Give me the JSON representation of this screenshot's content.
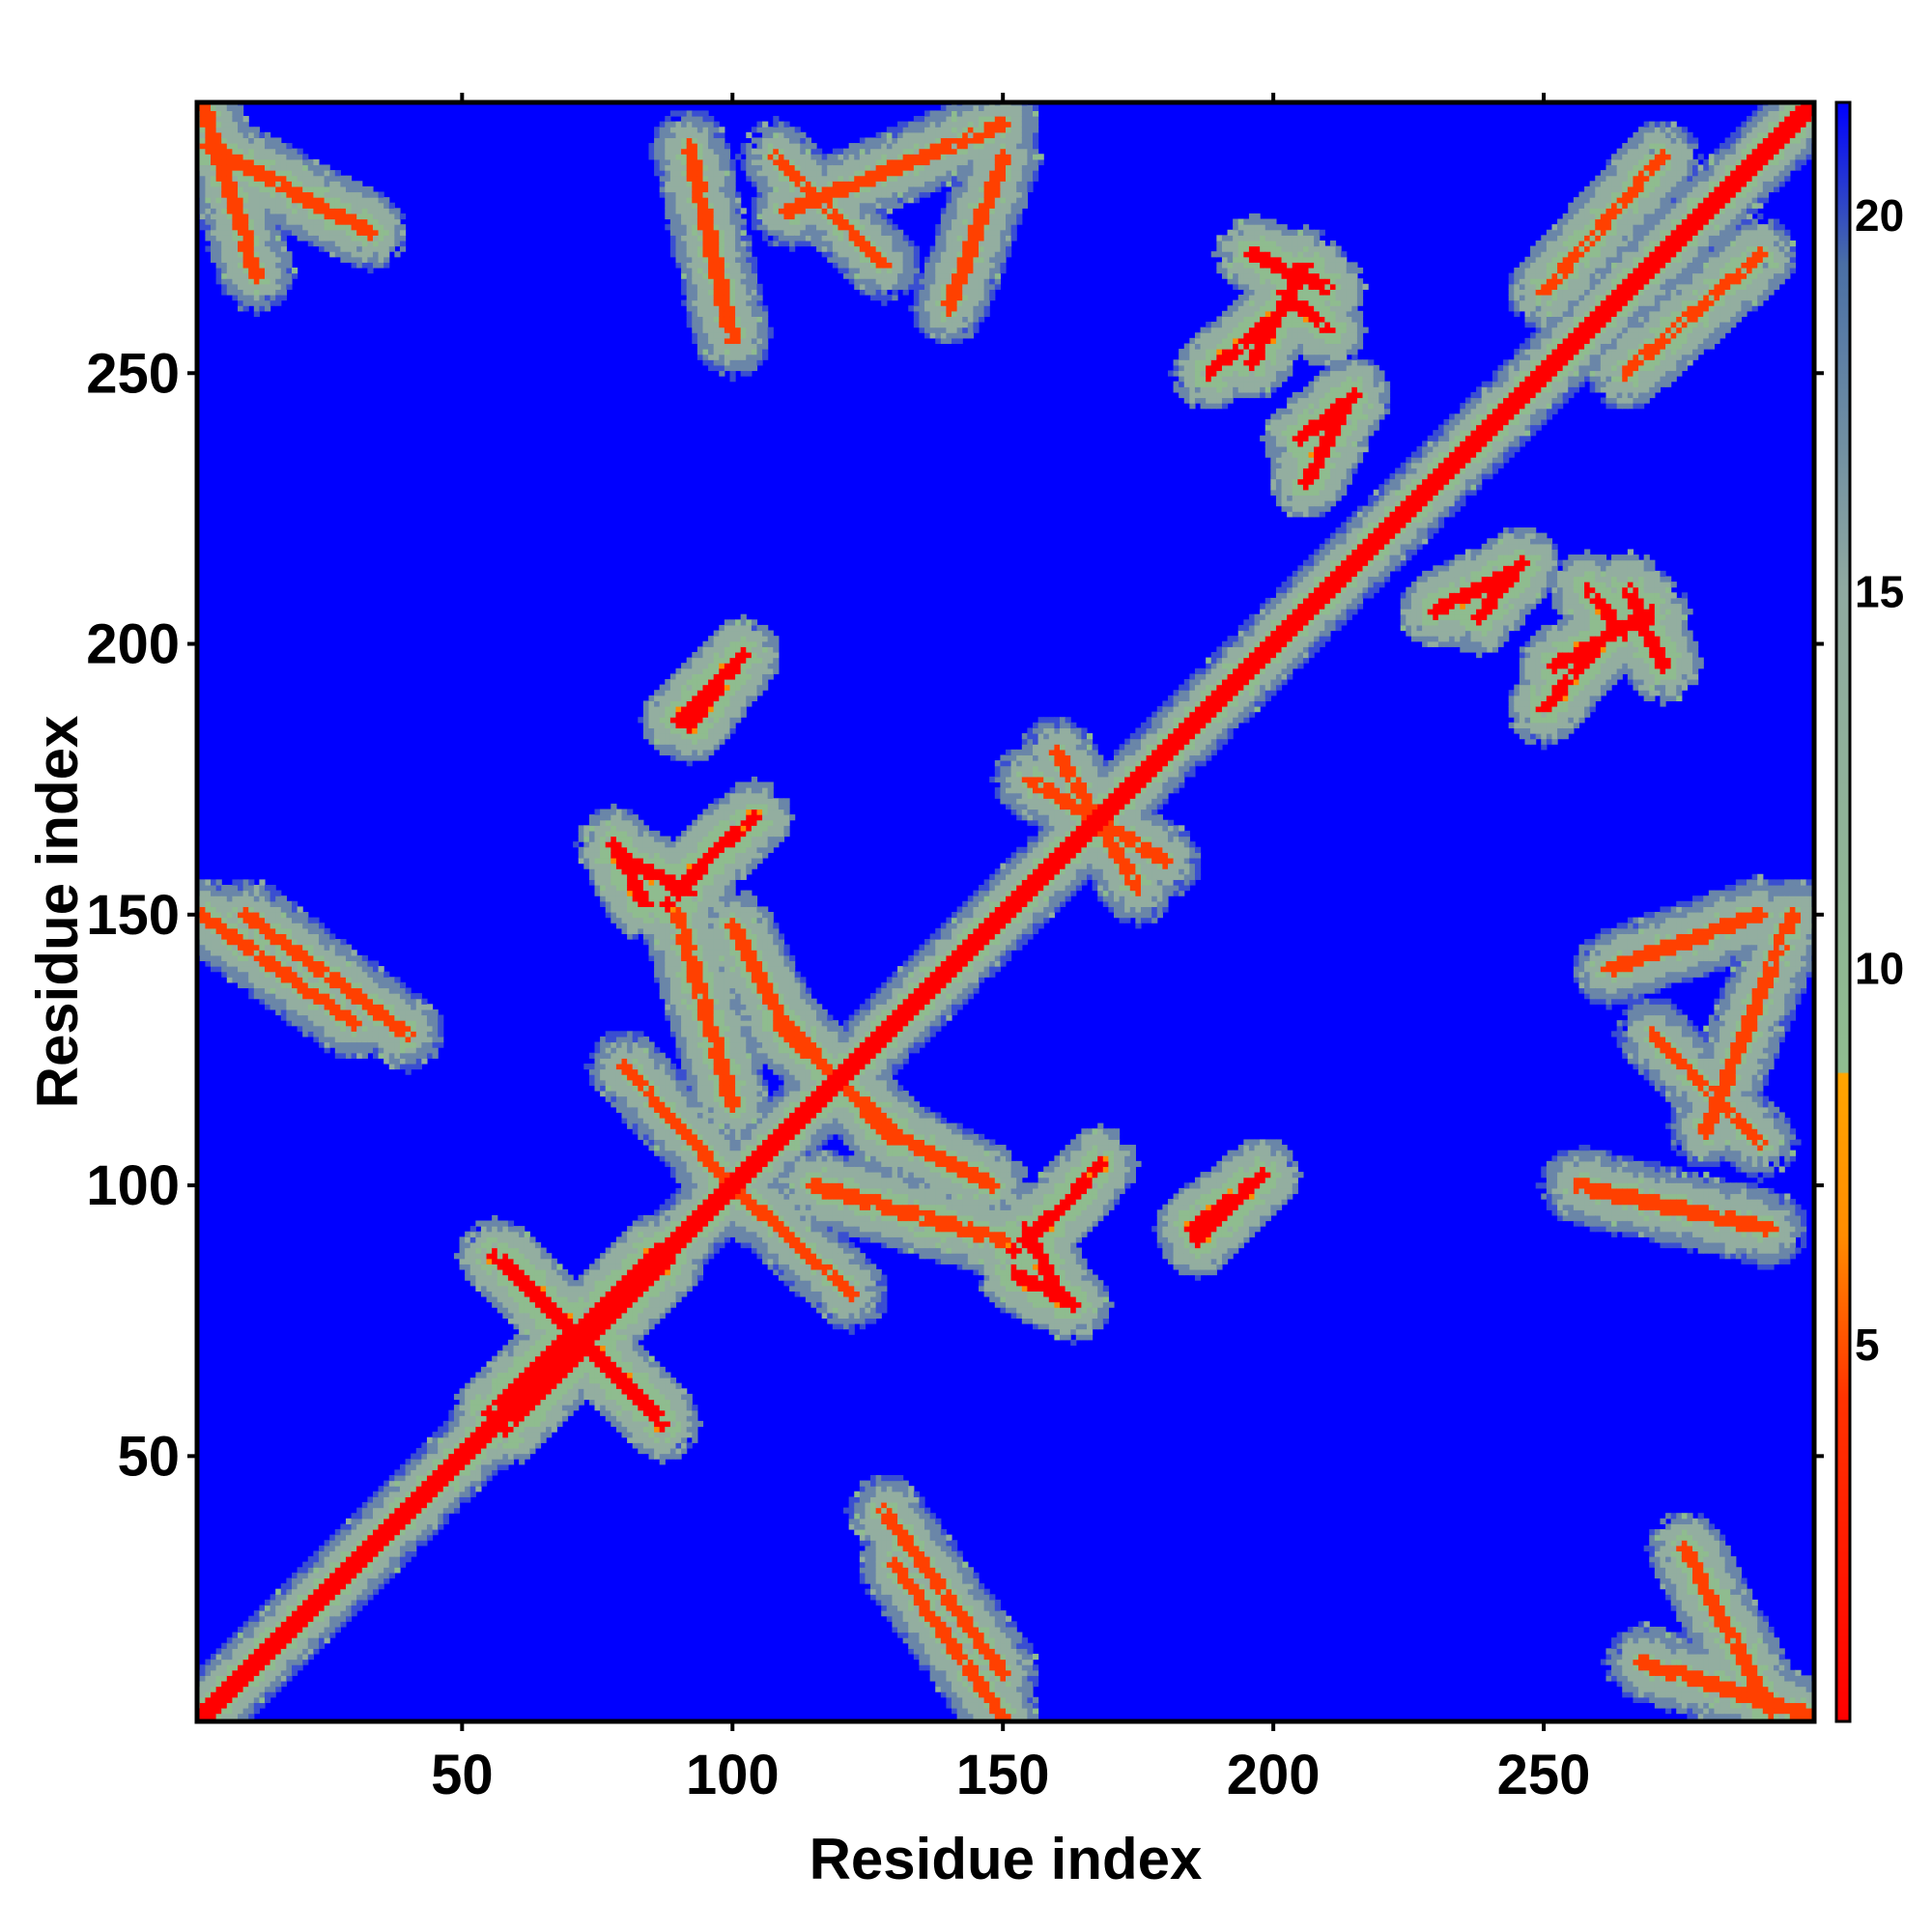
{
  "chart_data": {
    "type": "heatmap",
    "title": "",
    "xlabel": "Residue index",
    "ylabel": "Residue index",
    "xlim": [
      1,
      300
    ],
    "ylim": [
      1,
      300
    ],
    "x_ticks": [
      50,
      100,
      150,
      200,
      250
    ],
    "y_ticks": [
      50,
      100,
      150,
      200,
      250
    ],
    "colorbar": {
      "ticks": [
        5,
        10,
        15,
        20
      ],
      "range": [
        0,
        21.5
      ],
      "colors": {
        "low": "#ff0000",
        "mid_low": "#ff8c00",
        "mid": "#8fbc8f",
        "high": "#4a6fa5",
        "max": "#0000ff"
      }
    },
    "diagonal": {
      "value": 0,
      "width": 5
    },
    "contact_features": [
      {
        "kind": "parallel",
        "x1": 3,
        "y1": 292,
        "x2": 33,
        "y2": 276,
        "value": 7
      },
      {
        "kind": "parallel",
        "x1": 55,
        "y1": 58,
        "x2": 86,
        "y2": 88,
        "value": 6
      },
      {
        "kind": "anti",
        "x1": 58,
        "y1": 86,
        "x2": 87,
        "y2": 56,
        "value": 6
      },
      {
        "kind": "anti",
        "x1": 80,
        "y1": 122,
        "x2": 100,
        "y2": 100,
        "value": 8
      },
      {
        "kind": "anti",
        "x1": 80,
        "y1": 160,
        "x2": 92,
        "y2": 154,
        "value": 6
      },
      {
        "kind": "anti",
        "x1": 92,
        "y1": 157,
        "x2": 104,
        "y2": 168,
        "value": 6
      },
      {
        "kind": "parallel",
        "x1": 90,
        "y1": 186,
        "x2": 100,
        "y2": 196,
        "value": 6
      },
      {
        "kind": "anti",
        "x1": 100,
        "y1": 148,
        "x2": 110,
        "y2": 128,
        "value": 7
      },
      {
        "kind": "anti",
        "x1": 110,
        "y1": 130,
        "x2": 130,
        "y2": 108,
        "value": 7
      },
      {
        "kind": "anti",
        "x1": 115,
        "y1": 100,
        "x2": 150,
        "y2": 90,
        "value": 7
      },
      {
        "kind": "anti",
        "x1": 152,
        "y1": 88,
        "x2": 165,
        "y2": 100,
        "value": 6
      },
      {
        "kind": "anti",
        "x1": 152,
        "y1": 84,
        "x2": 163,
        "y2": 78,
        "value": 6
      },
      {
        "kind": "anti",
        "x1": 185,
        "y1": 92,
        "x2": 198,
        "y2": 102,
        "value": 6
      },
      {
        "kind": "anti",
        "x1": 155,
        "y1": 175,
        "x2": 180,
        "y2": 160,
        "value": 8
      },
      {
        "kind": "anti",
        "x1": 196,
        "y1": 252,
        "x2": 206,
        "y2": 270,
        "value": 6
      },
      {
        "kind": "anti",
        "x1": 202,
        "y1": 265,
        "x2": 210,
        "y2": 258,
        "value": 6
      },
      {
        "kind": "anti",
        "x1": 205,
        "y1": 238,
        "x2": 215,
        "y2": 246,
        "value": 6
      },
      {
        "kind": "anti",
        "x1": 230,
        "y1": 206,
        "x2": 245,
        "y2": 214,
        "value": 6
      },
      {
        "kind": "anti",
        "x1": 250,
        "y1": 188,
        "x2": 262,
        "y2": 202,
        "value": 6
      },
      {
        "kind": "anti",
        "x1": 266,
        "y1": 210,
        "x2": 272,
        "y2": 196,
        "value": 6
      },
      {
        "kind": "parallel",
        "x1": 262,
        "y1": 140,
        "x2": 290,
        "y2": 150,
        "value": 8
      },
      {
        "kind": "anti",
        "x1": 270,
        "y1": 128,
        "x2": 290,
        "y2": 108,
        "value": 8
      },
      {
        "kind": "parallel",
        "x1": 268,
        "y1": 12,
        "x2": 300,
        "y2": 2,
        "value": 8
      },
      {
        "kind": "parallel",
        "x1": 130,
        "y1": 30,
        "x2": 150,
        "y2": 2,
        "value": 8
      },
      {
        "kind": "anti",
        "x1": 10,
        "y1": 150,
        "x2": 40,
        "y2": 128,
        "value": 8
      },
      {
        "kind": "anti",
        "x1": 265,
        "y1": 250,
        "x2": 290,
        "y2": 272,
        "value": 7
      },
      {
        "kind": "anti",
        "x1": 110,
        "y1": 280,
        "x2": 150,
        "y2": 296,
        "value": 8
      },
      {
        "kind": "anti",
        "x1": 92,
        "y1": 292,
        "x2": 100,
        "y2": 256,
        "value": 8
      }
    ]
  }
}
